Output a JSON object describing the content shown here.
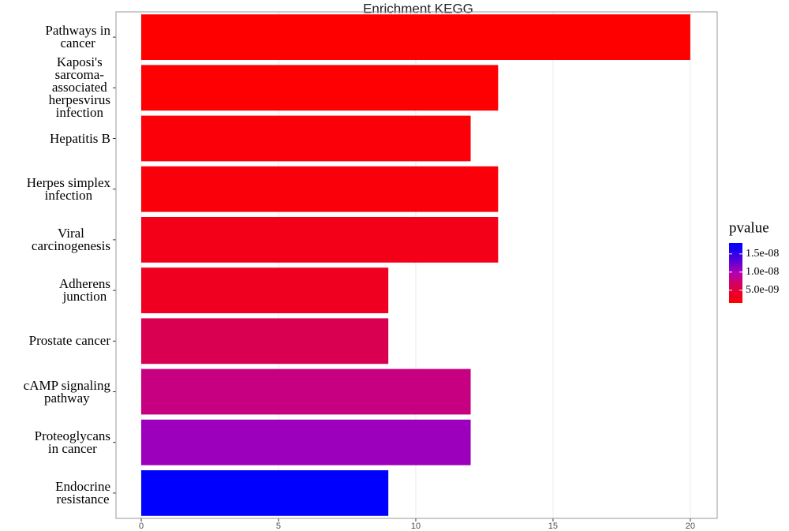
{
  "chart_data": {
    "type": "bar",
    "orientation": "horizontal",
    "title": "Enrichment   KEGG",
    "categories": [
      "Pathways in\ncancer",
      "Kaposi's\nsarcoma-\nassociated\nherpesvirus\ninfection",
      "Hepatitis B",
      "Herpes simplex\ninfection",
      "Viral\ncarcinogenesis",
      "Adherens\njunction",
      "Prostate cancer",
      "cAMP signaling\npathway",
      "Proteoglycans\nin cancer",
      "Endocrine\nresistance"
    ],
    "values": [
      20,
      13,
      12,
      13,
      13,
      9,
      9,
      12,
      12,
      9
    ],
    "pvalues": [
      1.5e-09,
      1.6e-09,
      2e-09,
      2.2e-09,
      3e-09,
      3.5e-09,
      6e-09,
      8e-09,
      1.05e-08,
      1.8e-08
    ],
    "xlim": [
      -0.92,
      20.98
    ],
    "xticks": [
      0,
      5,
      10,
      15,
      20
    ],
    "grid": true,
    "color_legend": {
      "title": "pvalue",
      "low_color": "#ff0000",
      "high_color": "#0000ff",
      "lim": [
        1.5e-09,
        1.8e-08
      ],
      "ticks": [
        {
          "value": 1.5e-08,
          "label": "1.5e-08"
        },
        {
          "value": 1e-08,
          "label": "1.0e-08"
        },
        {
          "value": 5e-09,
          "label": "5.0e-09"
        }
      ]
    }
  }
}
